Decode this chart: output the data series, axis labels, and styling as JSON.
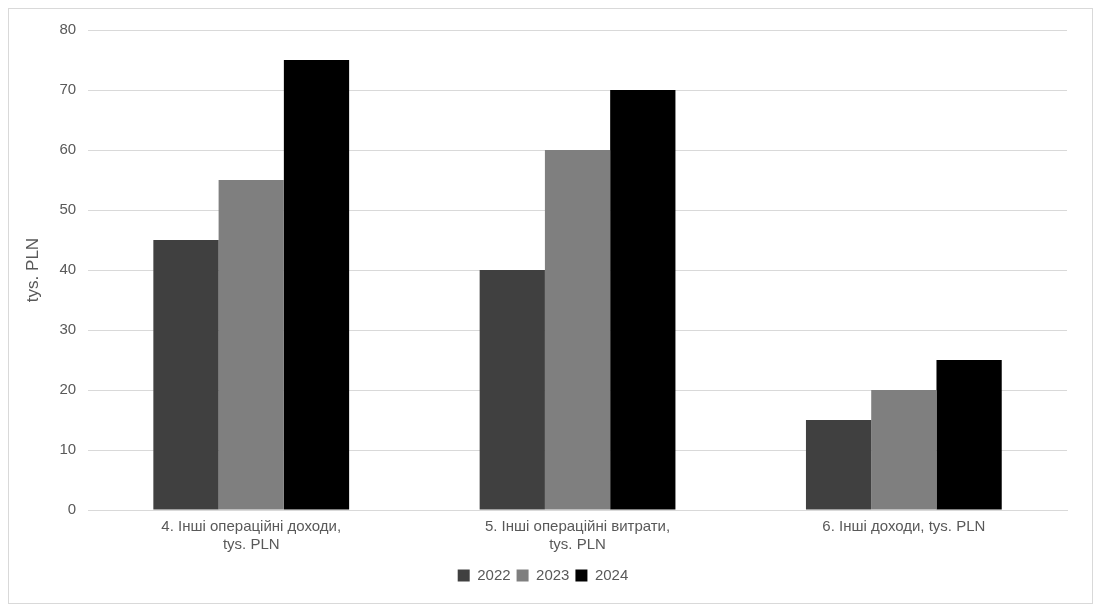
{
  "chart_data": {
    "type": "bar",
    "ylabel": "tys. PLN",
    "categories": [
      "4. Інші операційні доходи, tys. PLN",
      "5. Інші операційні витрати, tys. PLN",
      "6. Інші доходи, tys. PLN"
    ],
    "series": [
      {
        "name": "2022",
        "color": "#404040",
        "values": [
          45,
          40,
          15
        ]
      },
      {
        "name": "2023",
        "color": "#7f7f7f",
        "values": [
          55,
          60,
          20
        ]
      },
      {
        "name": "2024",
        "color": "#000000",
        "values": [
          75,
          70,
          25
        ]
      }
    ],
    "ylim": [
      0,
      80
    ],
    "yticks": [
      0,
      10,
      20,
      30,
      40,
      50,
      60,
      70,
      80
    ],
    "grid": "y",
    "legend": "bottom"
  }
}
